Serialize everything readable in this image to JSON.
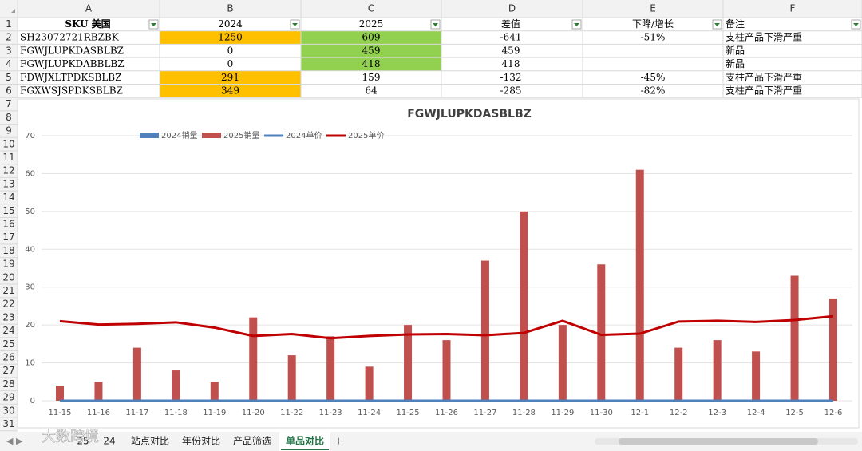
{
  "sheet": {
    "column_letters": [
      "A",
      "B",
      "C",
      "D",
      "E",
      "F"
    ],
    "row_numbers": [
      1,
      2,
      3,
      4,
      5,
      6,
      7,
      8,
      9,
      10,
      11,
      12,
      13,
      14,
      15,
      16,
      17,
      18,
      19,
      20,
      21,
      22,
      23,
      24,
      25,
      26,
      27,
      28,
      29,
      30,
      31
    ],
    "table": {
      "rows": [
        [
          "SKU 美国",
          "2024",
          "2025",
          "差值",
          "下降/增长",
          "备注"
        ],
        [
          "SH23072721RBZBK",
          1250,
          609,
          -641,
          "-51%",
          "支柱产品下滑严重"
        ],
        [
          "FGWJLUPKDASBLBZ",
          0,
          459,
          459,
          null,
          "新品"
        ],
        [
          "FGWJLUPKDABBLBZ",
          0,
          418,
          418,
          null,
          "新品"
        ],
        [
          "FDWJXLTPDKSBLBZ",
          291,
          159,
          -132,
          "-45%",
          "支柱产品下滑严重"
        ],
        [
          "FGXWSJSPDKSBLBZ",
          349,
          64,
          -285,
          "-82%",
          "支柱产品下滑严重"
        ]
      ]
    },
    "tabs": [
      "25",
      "24",
      "站点对比",
      "年份对比",
      "产品筛选",
      "单品对比",
      "+"
    ],
    "active_tab": 5,
    "watermark": "大数跨境"
  },
  "chart_data": {
    "type": "bar_line",
    "title": "FGWJLUPKDASBLBZ",
    "categories": [
      "11-15",
      "11-16",
      "11-17",
      "11-18",
      "11-19",
      "11-20",
      "11-22",
      "11-23",
      "11-24",
      "11-25",
      "11-26",
      "11-27",
      "11-28",
      "11-29",
      "11-30",
      "12-1",
      "12-2",
      "12-3",
      "12-4",
      "12-5",
      "12-6"
    ],
    "series": [
      {
        "name": "2024销量",
        "kind": "bar",
        "color": "#4f81bd",
        "values": [
          0,
          0,
          0,
          0,
          0,
          0,
          0,
          0,
          0,
          0,
          0,
          0,
          0,
          0,
          0,
          0,
          0,
          0,
          0,
          0,
          0
        ]
      },
      {
        "name": "2025销量",
        "kind": "bar",
        "color": "#c0504d",
        "values": [
          4,
          5,
          14,
          8,
          5,
          22,
          12,
          17,
          9,
          20,
          16,
          37,
          50,
          20,
          36,
          61,
          14,
          16,
          13,
          33,
          27
        ]
      },
      {
        "name": "2024单价",
        "kind": "line",
        "color": "#4f81bd",
        "values": [
          0,
          0,
          0,
          0,
          0,
          0,
          0,
          0,
          0,
          0,
          0,
          0,
          0,
          0,
          0,
          0,
          0,
          0,
          0,
          0,
          0
        ]
      },
      {
        "name": "2025单价",
        "kind": "line",
        "color": "#c00000",
        "values": [
          21,
          20.1,
          20.3,
          20.7,
          19.3,
          17.1,
          17.6,
          16.5,
          17.1,
          17.5,
          17.6,
          17.3,
          17.9,
          21.1,
          17.4,
          17.7,
          20.9,
          21.1,
          20.8,
          21.3,
          22.3
        ]
      }
    ],
    "ylim": [
      0,
      70
    ],
    "yticks": [
      0,
      10,
      20,
      30,
      40,
      50,
      60,
      70
    ],
    "grid": true,
    "legend": "top-left"
  }
}
